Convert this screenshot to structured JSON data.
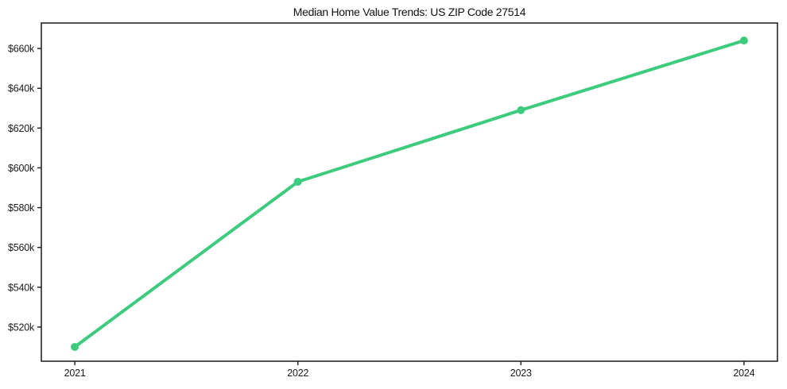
{
  "figure": {
    "background": "#ffffff"
  },
  "chart_data": {
    "type": "line",
    "title": "Median Home Value Trends: US ZIP Code 27514",
    "x": [
      "2021",
      "2022",
      "2023",
      "2024"
    ],
    "series": [
      {
        "name": "Median Home Value",
        "values": [
          510000,
          593000,
          629000,
          664000
        ]
      }
    ],
    "xlabel": "",
    "ylabel": "",
    "ylim": [
      502800,
      672800
    ],
    "y_tick_values": [
      520000,
      540000,
      560000,
      580000,
      600000,
      620000,
      640000,
      660000
    ],
    "y_tick_labels": [
      "$520k",
      "$540k",
      "$560k",
      "$580k",
      "$600k",
      "$620k",
      "$640k",
      "$660k"
    ],
    "grid": false,
    "legend": "none",
    "line_color": "#3dcb7d",
    "marker_color": "#3dcb7d",
    "axis_color": "#262626",
    "text_color": "#1a1a1a"
  }
}
